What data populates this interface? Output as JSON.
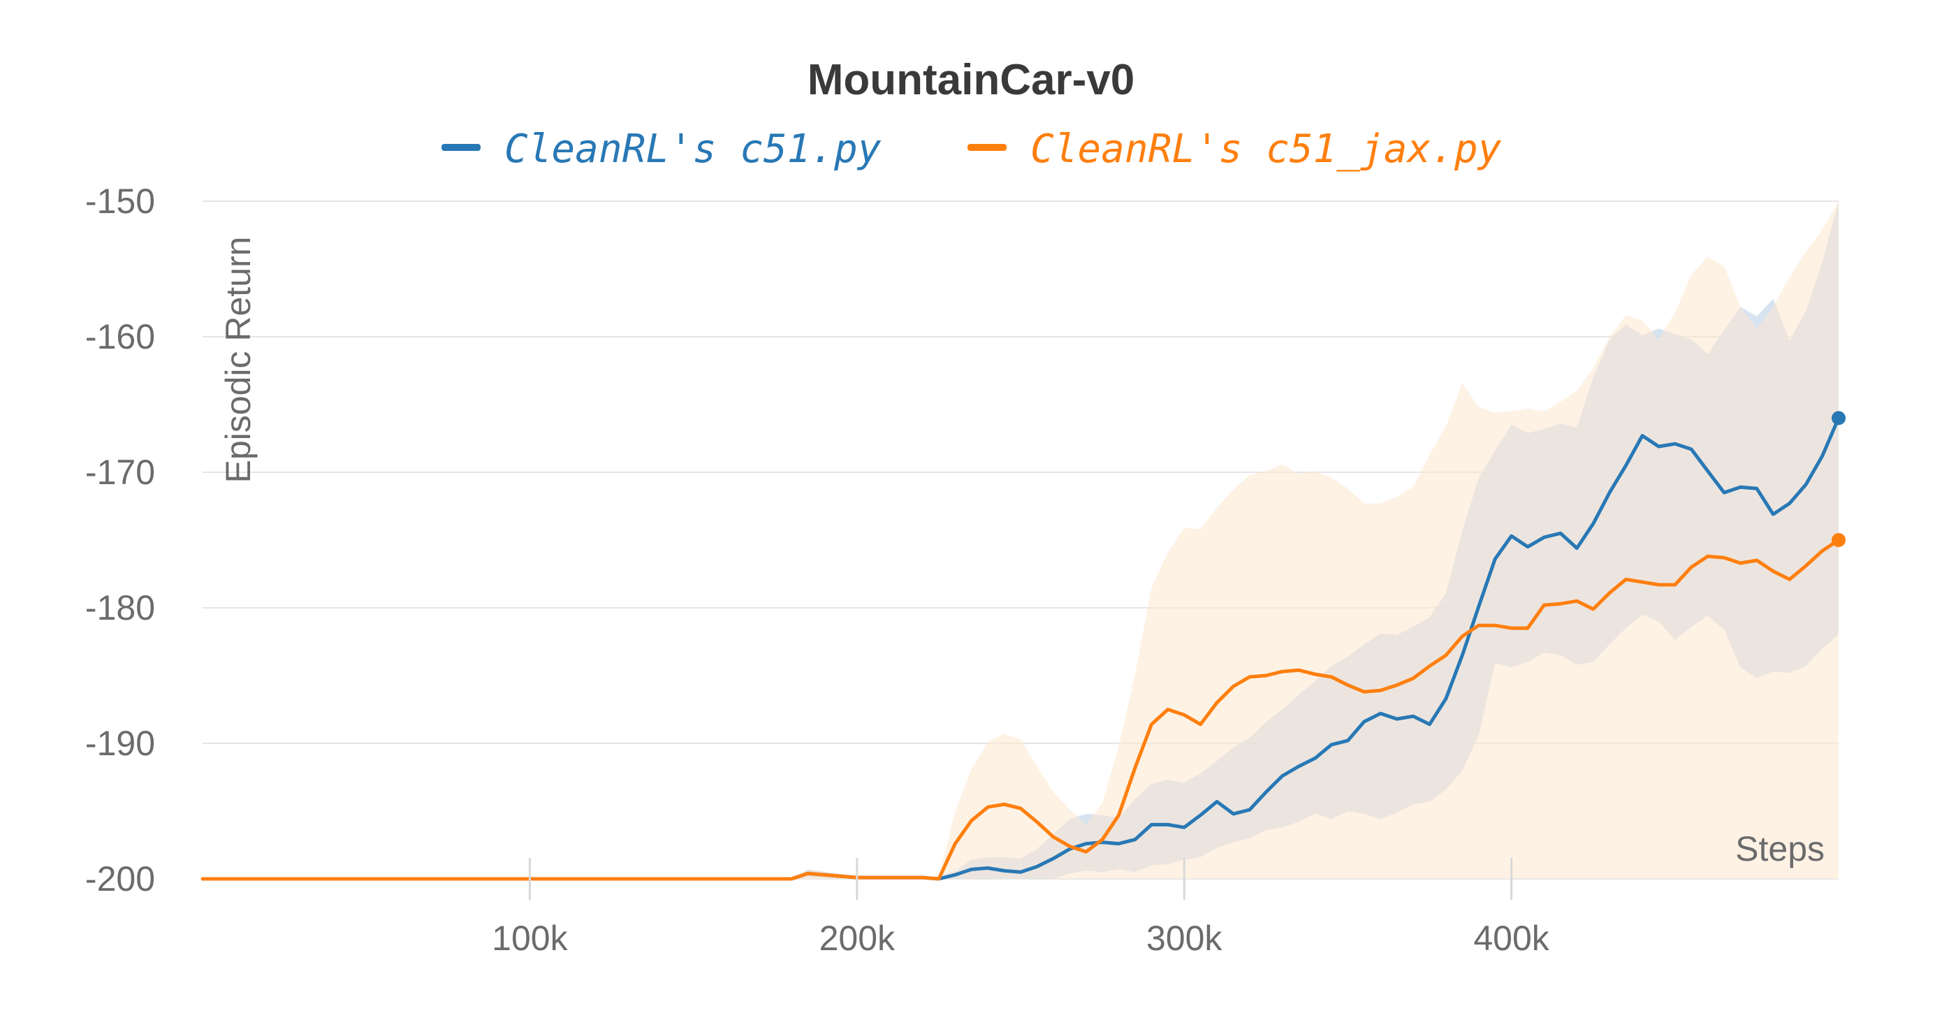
{
  "chart_data": {
    "type": "line",
    "title": "MountainCar-v0",
    "xlabel": "Steps",
    "ylabel": "Episodic Return",
    "xlim": [
      0,
      500000
    ],
    "ylim": [
      -200,
      -150
    ],
    "x_ticks": [
      100000,
      200000,
      300000,
      400000
    ],
    "x_tick_labels": [
      "100k",
      "200k",
      "300k",
      "400k"
    ],
    "y_ticks": [
      -200,
      -190,
      -180,
      -170,
      -160,
      -150
    ],
    "y_tick_labels": [
      "-200",
      "-190",
      "-180",
      "-170",
      "-160",
      "-150"
    ],
    "grid": true,
    "legend_position": "top",
    "series": [
      {
        "name": "CleanRL's c51.py",
        "color": "#2878b5",
        "band_color": "#c9d9ec",
        "x": [
          0,
          50000,
          100000,
          150000,
          180000,
          185000,
          200000,
          220000,
          225000,
          230000,
          235000,
          240000,
          245000,
          250000,
          255000,
          260000,
          265000,
          270000,
          275000,
          280000,
          285000,
          290000,
          295000,
          300000,
          305000,
          310000,
          315000,
          320000,
          325000,
          330000,
          335000,
          340000,
          345000,
          350000,
          355000,
          360000,
          365000,
          370000,
          375000,
          380000,
          385000,
          390000,
          395000,
          400000,
          405000,
          410000,
          415000,
          420000,
          425000,
          430000,
          435000,
          440000,
          445000,
          450000,
          455000,
          460000,
          465000,
          470000,
          475000,
          480000,
          485000,
          490000,
          495000,
          500000
        ],
        "y": [
          -200,
          -200,
          -200,
          -200,
          -200,
          -199.6,
          -199.9,
          -199.9,
          -200,
          -199.7,
          -199.3,
          -199.2,
          -199.4,
          -199.5,
          -199.1,
          -198.5,
          -197.8,
          -197.4,
          -197.3,
          -197.4,
          -197.1,
          -196.0,
          -196.0,
          -196.2,
          -195.3,
          -194.3,
          -195.2,
          -194.9,
          -193.6,
          -192.4,
          -191.7,
          -191.1,
          -190.1,
          -189.8,
          -188.4,
          -187.8,
          -188.2,
          -188.0,
          -188.6,
          -186.7,
          -183.5,
          -179.9,
          -176.4,
          -174.7,
          -175.5,
          -174.8,
          -174.5,
          -175.6,
          -173.8,
          -171.5,
          -169.5,
          -167.3,
          -168.1,
          -167.9,
          -168.3,
          -169.9,
          -171.5,
          -171.1,
          -171.2,
          -173.1,
          -172.3,
          -170.9,
          -168.8,
          -166.0
        ],
        "lower": [
          -200,
          -200,
          -200,
          -200,
          -200,
          -199.9,
          -200,
          -200,
          -200,
          -200,
          -200,
          -200,
          -200,
          -200,
          -200,
          -200,
          -199.6,
          -199.4,
          -199.5,
          -199.3,
          -199.5,
          -199.0,
          -198.9,
          -198.6,
          -198.4,
          -197.7,
          -197.3,
          -197.0,
          -196.4,
          -196.2,
          -195.8,
          -195.2,
          -195.6,
          -195.0,
          -195.2,
          -195.6,
          -195.1,
          -194.5,
          -194.3,
          -193.4,
          -192.0,
          -189.4,
          -184.1,
          -184.4,
          -184.0,
          -183.3,
          -183.5,
          -184.2,
          -184.0,
          -182.7,
          -181.5,
          -180.5,
          -181.0,
          -182.4,
          -181.4,
          -180.6,
          -181.6,
          -184.4,
          -185.2,
          -184.7,
          -184.8,
          -184.3,
          -183.0,
          -182.0
        ],
        "upper": [
          -200,
          -200,
          -200,
          -200,
          -200,
          -199.3,
          -199.8,
          -199.8,
          -199.9,
          -199.4,
          -198.6,
          -198.4,
          -198.4,
          -198.5,
          -197.8,
          -196.7,
          -195.6,
          -195.2,
          -195.3,
          -195.5,
          -194.1,
          -193.0,
          -192.7,
          -192.9,
          -192.2,
          -191.3,
          -190.3,
          -189.6,
          -188.4,
          -187.5,
          -186.4,
          -185.4,
          -184.3,
          -183.6,
          -182.7,
          -181.9,
          -182.0,
          -181.4,
          -180.7,
          -178.9,
          -174.3,
          -170.4,
          -168.4,
          -166.5,
          -167.1,
          -166.8,
          -166.4,
          -166.7,
          -163.0,
          -160.2,
          -159.1,
          -159.9,
          -159.4,
          -159.8,
          -160.2,
          -161.3,
          -159.5,
          -157.8,
          -158.5,
          -157.2,
          -160.3,
          -158.1,
          -154.5,
          -150.0
        ]
      },
      {
        "name": "CleanRL's c51_jax.py",
        "color": "#ff7f0e",
        "band_color": "#fde7cf",
        "x": [
          0,
          50000,
          100000,
          150000,
          180000,
          185000,
          200000,
          220000,
          225000,
          230000,
          235000,
          240000,
          245000,
          250000,
          255000,
          260000,
          265000,
          270000,
          275000,
          280000,
          285000,
          290000,
          295000,
          300000,
          305000,
          310000,
          315000,
          320000,
          325000,
          330000,
          335000,
          340000,
          345000,
          350000,
          355000,
          360000,
          365000,
          370000,
          375000,
          380000,
          385000,
          390000,
          395000,
          400000,
          405000,
          410000,
          415000,
          420000,
          425000,
          430000,
          435000,
          440000,
          445000,
          450000,
          455000,
          460000,
          465000,
          470000,
          475000,
          480000,
          485000,
          490000,
          495000,
          500000
        ],
        "y": [
          -200,
          -200,
          -200,
          -200,
          -200,
          -199.6,
          -199.9,
          -199.9,
          -200,
          -197.4,
          -195.7,
          -194.7,
          -194.5,
          -194.8,
          -195.8,
          -196.9,
          -197.6,
          -198.0,
          -197.1,
          -195.3,
          -191.8,
          -188.6,
          -187.5,
          -187.9,
          -188.6,
          -187.0,
          -185.8,
          -185.1,
          -185.0,
          -184.7,
          -184.6,
          -184.9,
          -185.1,
          -185.7,
          -186.2,
          -186.1,
          -185.7,
          -185.2,
          -184.3,
          -183.5,
          -182.1,
          -181.3,
          -181.3,
          -181.5,
          -181.5,
          -179.8,
          -179.7,
          -179.5,
          -180.1,
          -178.9,
          -177.9,
          -178.1,
          -178.3,
          -178.3,
          -177.0,
          -176.2,
          -176.3,
          -176.7,
          -176.5,
          -177.3,
          -177.9,
          -176.9,
          -175.8,
          -175.0
        ],
        "lower": [
          -200,
          -200,
          -200,
          -200,
          -200,
          -200,
          -200,
          -200,
          -200,
          -200,
          -200,
          -200,
          -200,
          -200,
          -200,
          -200,
          -200,
          -200,
          -200,
          -200,
          -200,
          -200,
          -200,
          -200,
          -200,
          -200,
          -200,
          -200,
          -200,
          -200,
          -200,
          -200,
          -200,
          -200,
          -200,
          -200,
          -200,
          -200,
          -200,
          -200,
          -200,
          -200,
          -200,
          -200,
          -200,
          -200,
          -200,
          -200,
          -200,
          -200,
          -200,
          -200,
          -200,
          -200,
          -200,
          -200,
          -200,
          -200,
          -200,
          -200,
          -200,
          -200,
          -200,
          -200
        ],
        "upper": [
          -200,
          -200,
          -200,
          -200,
          -200,
          -199.3,
          -199.8,
          -199.8,
          -199.9,
          -195.0,
          -191.9,
          -189.9,
          -189.3,
          -189.7,
          -191.7,
          -193.6,
          -194.9,
          -196.0,
          -194.4,
          -190.2,
          -184.9,
          -178.5,
          -175.9,
          -174.1,
          -174.2,
          -172.6,
          -171.3,
          -170.2,
          -169.9,
          -169.4,
          -170.1,
          -169.9,
          -170.4,
          -171.2,
          -172.3,
          -172.3,
          -171.8,
          -171.1,
          -168.7,
          -166.6,
          -163.4,
          -165.2,
          -165.6,
          -165.5,
          -165.3,
          -165.5,
          -164.8,
          -164.0,
          -162.3,
          -160.0,
          -158.4,
          -158.8,
          -160.2,
          -158.2,
          -155.4,
          -154.1,
          -154.8,
          -157.8,
          -159.4,
          -157.8,
          -155.6,
          -153.7,
          -152.1,
          -150.0
        ]
      }
    ]
  }
}
